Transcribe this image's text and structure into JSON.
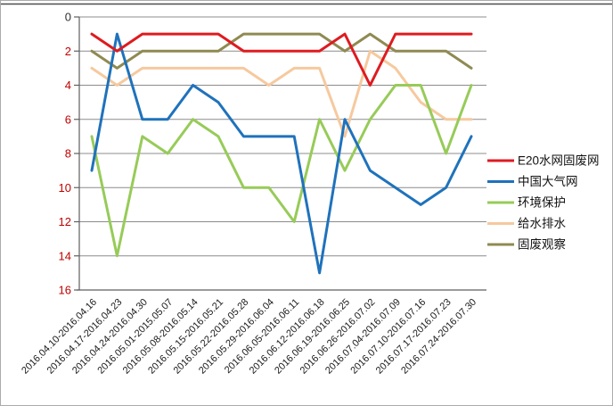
{
  "chart_data": {
    "type": "line",
    "title": "",
    "subtitle": "",
    "legend_position": "right",
    "grid": true,
    "categories": [
      "2016.04.10-2016.04.16",
      "2016.04.17-2016.04.23",
      "2016.04.24-2016.04.30",
      "2016.05.01-2015.05.07",
      "2016.05.08-2016.05.14",
      "2016.05.15-2016.05.21",
      "2016.05.22-2016.05.28",
      "2016.05.29-2016.06.04",
      "2016.06.05-2016.06.11",
      "2016.06.12-2016.06.18",
      "2016.06.19-2016.06.25",
      "2016.06.26-2016.07.02",
      "2016.07.04-2016.07.09",
      "2016.07.10-2016.07.16",
      "2016.07.17-2016.07.23",
      "2016.07.24-2016.07.30"
    ],
    "y_axis": {
      "min": 0,
      "max": 16,
      "tick_step": 2,
      "inverted": true,
      "ticks": [
        0,
        2,
        4,
        6,
        8,
        10,
        12,
        14,
        16
      ],
      "tick_color": "#C00000",
      "zero_tick_color": "#303030"
    },
    "colors": {
      "grid_color": "#8C8C8C",
      "axis_color": "#5F5F5F",
      "x_label_color": "#1A1A1A",
      "legend_text_color": "#111111",
      "top_rule_color": "#4D4D4D"
    },
    "series": [
      {
        "name": "E20水网固废网",
        "color": "#DE1B20",
        "values": [
          1,
          2,
          1,
          1,
          1,
          1,
          2,
          2,
          2,
          2,
          1,
          4,
          1,
          1,
          1,
          1
        ]
      },
      {
        "name": "中国大气网",
        "color": "#1F72BC",
        "values": [
          9,
          1,
          6,
          6,
          4,
          5,
          7,
          7,
          7,
          15,
          6,
          9,
          10,
          11,
          10,
          7
        ]
      },
      {
        "name": "环境保护",
        "color": "#97CB58",
        "values": [
          7,
          14,
          7,
          8,
          6,
          7,
          10,
          10,
          12,
          6,
          9,
          6,
          4,
          4,
          8,
          4
        ]
      },
      {
        "name": "给水排水",
        "color": "#F6C99E",
        "values": [
          3,
          4,
          3,
          3,
          3,
          3,
          3,
          4,
          3,
          3,
          7,
          2,
          3,
          5,
          6,
          6
        ]
      },
      {
        "name": "固废观察",
        "color": "#8F8A52",
        "values": [
          2,
          3,
          2,
          2,
          2,
          2,
          1,
          1,
          1,
          1,
          2,
          1,
          2,
          2,
          2,
          3
        ]
      }
    ]
  }
}
